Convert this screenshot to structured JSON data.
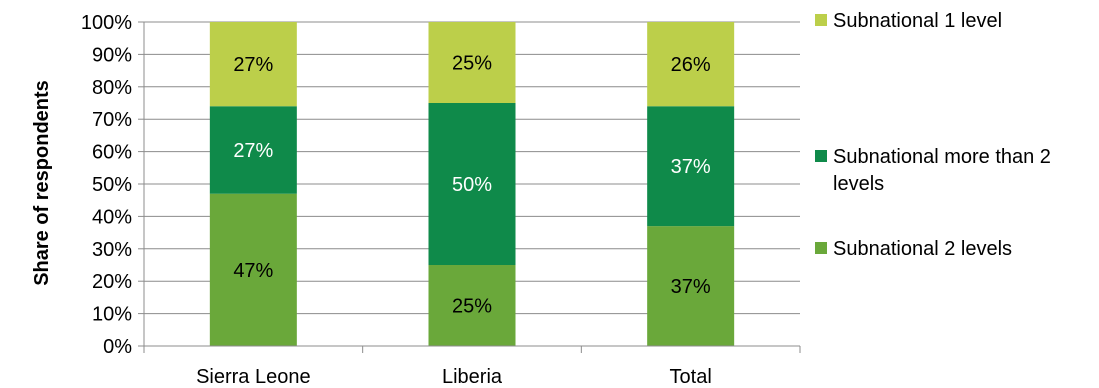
{
  "chart_data": {
    "type": "bar",
    "stacked": true,
    "percent": true,
    "ylabel": "Share of respondents",
    "xlabel": "",
    "title": "",
    "ylim": [
      0,
      100
    ],
    "yticks": [
      "0%",
      "10%",
      "20%",
      "30%",
      "40%",
      "50%",
      "60%",
      "70%",
      "80%",
      "90%",
      "100%"
    ],
    "grid": true,
    "legend_position": "right",
    "categories": [
      "Sierra Leone",
      "Liberia",
      "Total"
    ],
    "series": [
      {
        "name": "Subnational 2 levels",
        "values": [
          47,
          25,
          37
        ],
        "labels": [
          "47%",
          "25%",
          "37%"
        ],
        "color": "#6aa83a",
        "label_color": "#000000"
      },
      {
        "name": "Subnational more than 2 levels",
        "values": [
          27,
          50,
          37
        ],
        "labels": [
          "27%",
          "50%",
          "37%"
        ],
        "color": "#0f8a4a",
        "label_color": "#ffffff"
      },
      {
        "name": "Subnational 1 level",
        "values": [
          27,
          25,
          26
        ],
        "labels": [
          "27%",
          "25%",
          "26%"
        ],
        "color": "#bccf4a",
        "label_color": "#000000"
      }
    ],
    "legend": [
      {
        "lines": [
          "Subnational 1 level"
        ],
        "color": "#bccf4a"
      },
      {
        "lines": [
          "Subnational more than 2",
          "levels"
        ],
        "color": "#0f8a4a"
      },
      {
        "lines": [
          "Subnational 2 levels"
        ],
        "color": "#6aa83a"
      }
    ]
  }
}
